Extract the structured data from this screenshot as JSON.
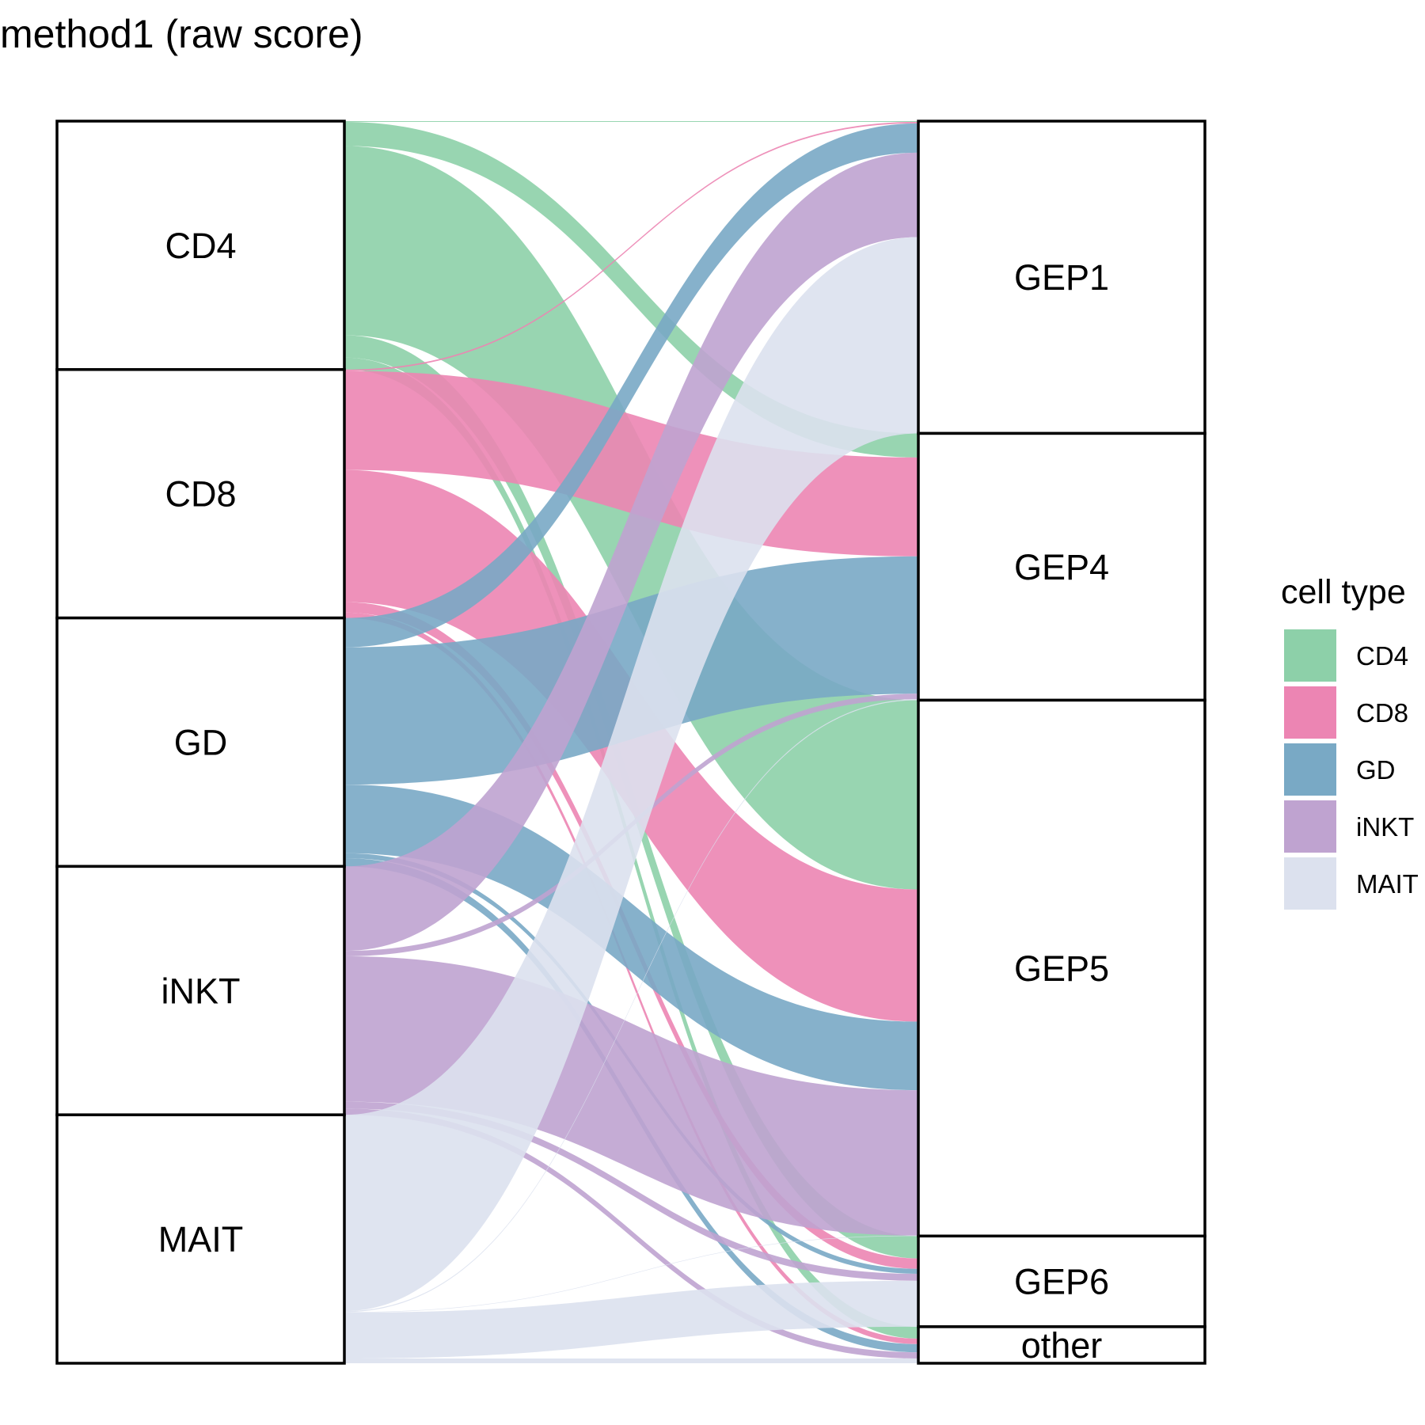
{
  "chart_data": {
    "type": "sankey",
    "title": "method1 (raw score)",
    "left_axis": [
      "CD4",
      "CD8",
      "GD",
      "iNKT",
      "MAIT"
    ],
    "right_axis": [
      "GEP1",
      "GEP4",
      "GEP5",
      "GEP6",
      "other"
    ],
    "colors": {
      "CD4": "#8dd0a9",
      "CD8": "#ec85b3",
      "GD": "#79a9c5",
      "iNKT": "#bfa3d0",
      "MAIT": "#dce1ee"
    },
    "legend": {
      "title": "cell type",
      "position": "right",
      "items": [
        "CD4",
        "CD8",
        "GD",
        "iNKT",
        "MAIT"
      ]
    },
    "flows": [
      {
        "from": "CD4",
        "to": "GEP1",
        "value": 0.003
      },
      {
        "from": "CD4",
        "to": "GEP4",
        "value": 0.097
      },
      {
        "from": "CD4",
        "to": "GEP5",
        "value": 0.762
      },
      {
        "from": "CD4",
        "to": "GEP6",
        "value": 0.09
      },
      {
        "from": "CD4",
        "to": "other",
        "value": 0.048
      },
      {
        "from": "CD8",
        "to": "GEP1",
        "value": 0.006
      },
      {
        "from": "CD8",
        "to": "GEP4",
        "value": 0.398
      },
      {
        "from": "CD8",
        "to": "GEP5",
        "value": 0.532
      },
      {
        "from": "CD8",
        "to": "GEP6",
        "value": 0.042
      },
      {
        "from": "CD8",
        "to": "other",
        "value": 0.022
      },
      {
        "from": "GD",
        "to": "GEP1",
        "value": 0.118
      },
      {
        "from": "GD",
        "to": "GEP4",
        "value": 0.553
      },
      {
        "from": "GD",
        "to": "GEP5",
        "value": 0.276
      },
      {
        "from": "GD",
        "to": "GEP6",
        "value": 0.02
      },
      {
        "from": "GD",
        "to": "other",
        "value": 0.033
      },
      {
        "from": "iNKT",
        "to": "GEP1",
        "value": 0.34
      },
      {
        "from": "iNKT",
        "to": "GEP4",
        "value": 0.022
      },
      {
        "from": "iNKT",
        "to": "GEP5",
        "value": 0.585
      },
      {
        "from": "iNKT",
        "to": "GEP6",
        "value": 0.028
      },
      {
        "from": "iNKT",
        "to": "other",
        "value": 0.025
      },
      {
        "from": "MAIT",
        "to": "GEP1",
        "value": 0.79
      },
      {
        "from": "MAIT",
        "to": "GEP4",
        "value": 0.004
      },
      {
        "from": "MAIT",
        "to": "GEP5",
        "value": 0.002
      },
      {
        "from": "MAIT",
        "to": "GEP6",
        "value": 0.185
      },
      {
        "from": "MAIT",
        "to": "other",
        "value": 0.019
      }
    ]
  }
}
